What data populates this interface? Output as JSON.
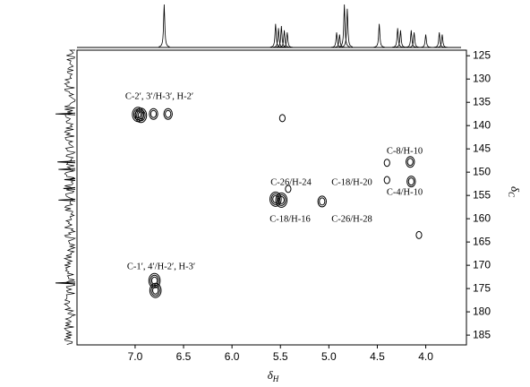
{
  "chart_data": {
    "type": "contour",
    "xlabel": "δ",
    "xlabel_sub": "H",
    "ylabel": "δ",
    "ylabel_sub": "C",
    "xlim": [
      7.6,
      3.58
    ],
    "ylim": [
      123.8,
      187.1
    ],
    "xticks": [
      {
        "value": 7,
        "label": "7.0"
      },
      6.5,
      {
        "value": 6,
        "label": "6.0"
      },
      5.5,
      {
        "value": 5,
        "label": "5.0"
      },
      4.5,
      {
        "value": 4,
        "label": "4.0"
      }
    ],
    "yticks": [
      125,
      130,
      135,
      140,
      145,
      150,
      155,
      160,
      165,
      170,
      175,
      180,
      185
    ],
    "peaks": {
      "x": [
        6.97,
        6.94,
        6.81,
        6.66,
        5.48,
        6.8,
        6.79,
        5.55,
        5.49,
        5.42,
        5.07,
        4.4,
        4.16,
        4.4,
        4.15,
        4.07
      ],
      "y": [
        137.6,
        137.8,
        137.5,
        137.5,
        138.4,
        173.3,
        175.4,
        155.8,
        156.0,
        153.6,
        156.3,
        148.0,
        147.8,
        151.7,
        152.0,
        163.5
      ],
      "levels": [
        3,
        3,
        2,
        2,
        1,
        3,
        3,
        3,
        3,
        1,
        2,
        1,
        2,
        1,
        2,
        1
      ]
    },
    "f2_projection": {
      "x": [
        6.7,
        5.55,
        5.52,
        5.49,
        5.46,
        5.43,
        4.92,
        4.89,
        4.84,
        4.81,
        4.48,
        4.29,
        4.26,
        4.15,
        4.12,
        4.0,
        3.86,
        3.83
      ],
      "intensity": [
        1.0,
        0.55,
        0.45,
        0.5,
        0.4,
        0.35,
        0.35,
        0.3,
        1.0,
        0.9,
        0.55,
        0.45,
        0.4,
        0.4,
        0.35,
        0.3,
        0.35,
        0.3
      ]
    },
    "f1_projection": {
      "y": [
        137.5,
        147.8,
        149.4,
        151.6,
        153.5,
        156.0,
        173.8
      ],
      "intensity": [
        1.0,
        0.9,
        0.85,
        0.55,
        0.6,
        0.85,
        1.0
      ]
    },
    "annotations": [
      "C-2′, 3′/H-3′, H-2′",
      "C-1′, 4′/H-2′, H-3′",
      "C-26/H-24",
      "C-18/H-16",
      "C-18/H-20",
      "C-26/H-28",
      "C-8/H-10",
      "C-4/H-10"
    ]
  }
}
